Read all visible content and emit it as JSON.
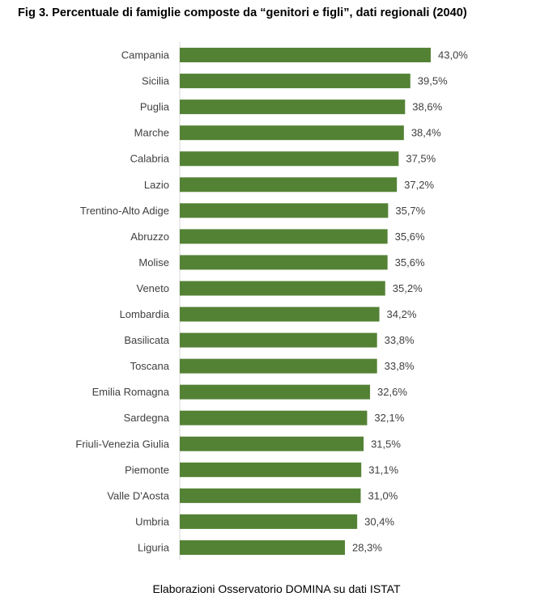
{
  "title": "Fig 3. Percentuale di famiglie composte da “genitori e figli”, dati regionali (2040)",
  "source": "Elaborazioni Osservatorio DOMINA su dati ISTAT",
  "colors": {
    "bar": "#548235",
    "label": "#404040"
  },
  "chart_data": {
    "type": "bar",
    "orientation": "horizontal",
    "categories": [
      "Campania",
      "Sicilia",
      "Puglia",
      "Marche",
      "Calabria",
      "Lazio",
      "Trentino-Alto Adige",
      "Abruzzo",
      "Molise",
      "Veneto",
      "Lombardia",
      "Basilicata",
      "Toscana",
      "Emilia Romagna",
      "Sardegna",
      "Friuli-Venezia Giulia",
      "Piemonte",
      "Valle D'Aosta",
      "Umbria",
      "Liguria"
    ],
    "values": [
      43.0,
      39.5,
      38.6,
      38.4,
      37.5,
      37.2,
      35.7,
      35.6,
      35.6,
      35.2,
      34.2,
      33.8,
      33.8,
      32.6,
      32.1,
      31.5,
      31.1,
      31.0,
      30.4,
      28.3
    ],
    "value_labels": [
      "43,0%",
      "39,5%",
      "38,6%",
      "38,4%",
      "37,5%",
      "37,2%",
      "35,7%",
      "35,6%",
      "35,6%",
      "35,2%",
      "34,2%",
      "33,8%",
      "33,8%",
      "32,6%",
      "32,1%",
      "31,5%",
      "31,1%",
      "31,0%",
      "30,4%",
      "28,3%"
    ],
    "xlim": [
      0,
      43.0
    ],
    "grid": false,
    "legend": "none",
    "data_labels": true
  }
}
